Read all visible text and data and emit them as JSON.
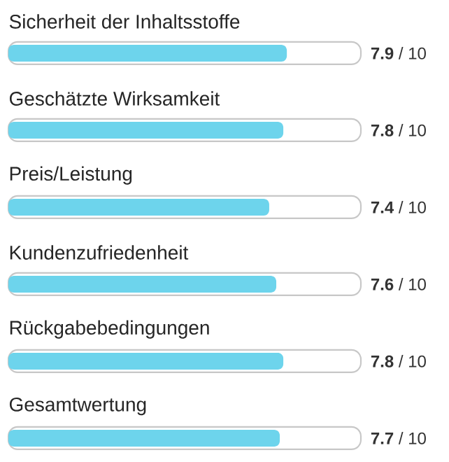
{
  "chart_data": {
    "type": "bar",
    "orientation": "horizontal",
    "categories": [
      "Sicherheit der Inhaltsstoffe",
      "Geschätzte Wirksamkeit",
      "Preis/Leistung",
      "Kundenzufriedenheit",
      "Rückgabebedingungen",
      "Gesamtwertung"
    ],
    "values": [
      7.9,
      7.8,
      7.4,
      7.6,
      7.8,
      7.7
    ],
    "value_labels": [
      "**7.9** / 10",
      "**7.8** / 10",
      "**7.4** / 10",
      "**7.6** / 10",
      "**7.8** / 10",
      "**7.7** / 10"
    ],
    "color": "#6dd4ec",
    "xlim": [
      0,
      10
    ]
  }
}
